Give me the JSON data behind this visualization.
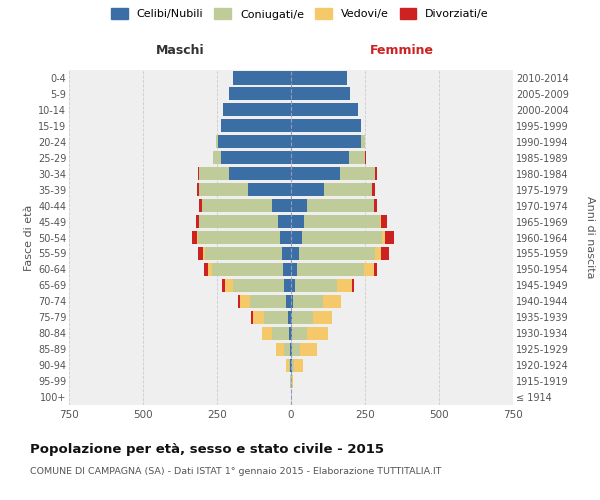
{
  "age_groups": [
    "100+",
    "95-99",
    "90-94",
    "85-89",
    "80-84",
    "75-79",
    "70-74",
    "65-69",
    "60-64",
    "55-59",
    "50-54",
    "45-49",
    "40-44",
    "35-39",
    "30-34",
    "25-29",
    "20-24",
    "15-19",
    "10-14",
    "5-9",
    "0-4"
  ],
  "birth_years": [
    "≤ 1914",
    "1915-1919",
    "1920-1924",
    "1925-1929",
    "1930-1934",
    "1935-1939",
    "1940-1944",
    "1945-1949",
    "1950-1954",
    "1955-1959",
    "1960-1964",
    "1965-1969",
    "1970-1974",
    "1975-1979",
    "1980-1984",
    "1985-1989",
    "1990-1994",
    "1995-1999",
    "2000-2004",
    "2005-2009",
    "2010-2014"
  ],
  "colors": {
    "celibi": "#3A6EA5",
    "coniugati": "#BFCC99",
    "vedovi": "#F5C96A",
    "divorziati": "#CC2222"
  },
  "males": {
    "celibi": [
      0,
      1,
      2,
      5,
      8,
      10,
      18,
      22,
      28,
      32,
      38,
      45,
      65,
      145,
      210,
      235,
      245,
      235,
      230,
      210,
      195
    ],
    "coniugati": [
      0,
      1,
      5,
      20,
      55,
      80,
      120,
      175,
      240,
      260,
      275,
      265,
      235,
      165,
      100,
      30,
      10,
      0,
      0,
      0,
      0
    ],
    "vedovi": [
      0,
      2,
      10,
      25,
      35,
      40,
      35,
      25,
      12,
      5,
      5,
      0,
      0,
      0,
      0,
      0,
      0,
      0,
      0,
      0,
      0
    ],
    "divorziati": [
      0,
      0,
      0,
      0,
      0,
      5,
      5,
      12,
      15,
      18,
      18,
      12,
      10,
      8,
      3,
      0,
      0,
      0,
      0,
      0,
      0
    ]
  },
  "females": {
    "celibi": [
      0,
      1,
      2,
      4,
      5,
      5,
      8,
      12,
      20,
      28,
      38,
      45,
      55,
      110,
      165,
      195,
      235,
      235,
      225,
      200,
      190
    ],
    "coniugati": [
      0,
      2,
      8,
      25,
      50,
      70,
      100,
      145,
      225,
      255,
      270,
      255,
      225,
      165,
      120,
      55,
      15,
      0,
      0,
      0,
      0
    ],
    "vedovi": [
      0,
      5,
      30,
      60,
      70,
      65,
      60,
      50,
      35,
      20,
      10,
      5,
      0,
      0,
      0,
      0,
      0,
      0,
      0,
      0,
      0
    ],
    "divorziati": [
      0,
      0,
      0,
      0,
      0,
      0,
      0,
      5,
      12,
      28,
      30,
      18,
      10,
      8,
      5,
      2,
      0,
      0,
      0,
      0,
      0
    ]
  },
  "title": "Popolazione per età, sesso e stato civile - 2015",
  "subtitle": "COMUNE DI CAMPAGNA (SA) - Dati ISTAT 1° gennaio 2015 - Elaborazione TUTTITALIA.IT",
  "xlabel_left": "Maschi",
  "xlabel_right": "Femmine",
  "ylabel_left": "Fasce di età",
  "ylabel_right": "Anni di nascita",
  "xlim": 750,
  "xticks": [
    -750,
    -500,
    -250,
    0,
    250,
    500,
    750
  ],
  "legend_labels": [
    "Celibi/Nubili",
    "Coniugati/e",
    "Vedovi/e",
    "Divorziati/e"
  ],
  "background_color": "#ffffff",
  "plot_bg_color": "#efefef",
  "grid_color": "#cccccc"
}
